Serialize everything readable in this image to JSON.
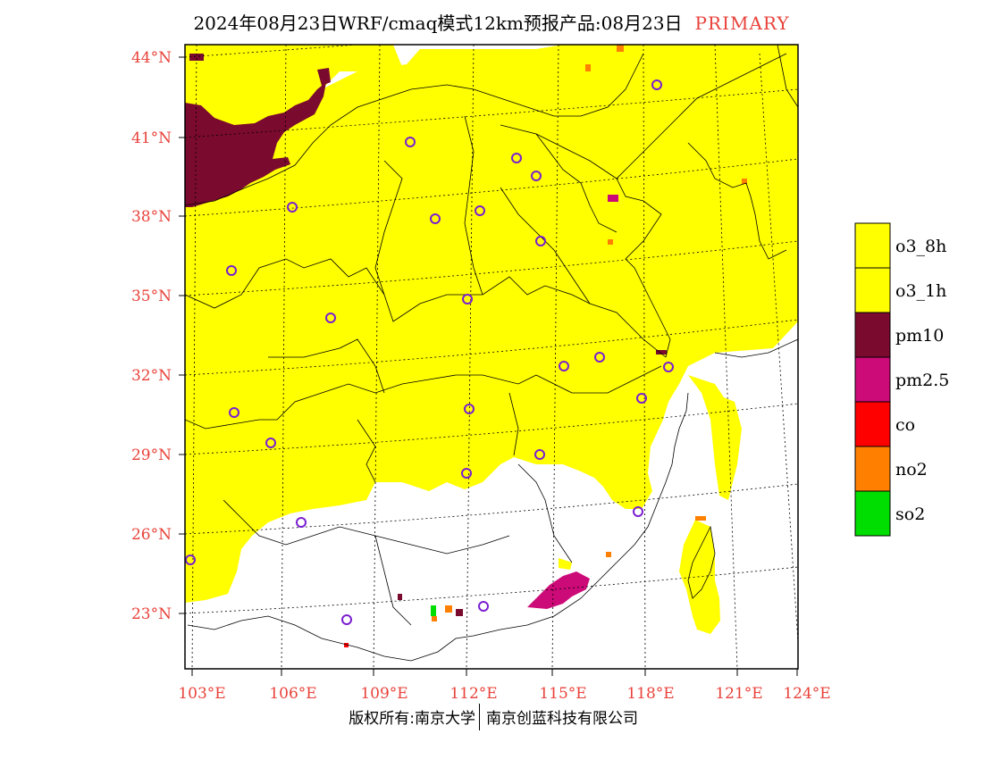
{
  "header": {
    "title": "2024年08月23日WRF/cmaq模式12km预报产品:08月23日",
    "tag": "PRIMARY"
  },
  "map": {
    "lat_labels": [
      "44°N",
      "41°N",
      "38°N",
      "35°N",
      "32°N",
      "29°N",
      "26°N",
      "23°N"
    ],
    "lon_labels": [
      "103°E",
      "106°E",
      "109°E",
      "112°E",
      "115°E",
      "118°E",
      "121°E",
      "124°E"
    ],
    "colors": {
      "o3_8h": "#ffff00",
      "o3_1h": "#ffff00",
      "pm10": "#7a0a2e",
      "pm25": "#cc0a78",
      "co": "#ff0000",
      "no2": "#ff8000",
      "so2": "#00dd00",
      "station": "#7a1fd0",
      "label": "#e8423a"
    }
  },
  "legend": {
    "items": [
      {
        "label": "o3_8h",
        "color": "#ffff00"
      },
      {
        "label": "o3_1h",
        "color": "#ffff00"
      },
      {
        "label": "pm10",
        "color": "#7a0a2e"
      },
      {
        "label": "pm2.5",
        "color": "#cc0a78"
      },
      {
        "label": "co",
        "color": "#ff0000"
      },
      {
        "label": "no2",
        "color": "#ff8000"
      },
      {
        "label": "so2",
        "color": "#00dd00"
      }
    ]
  },
  "footer": {
    "left": "版权所有:南京大学",
    "right": "南京创蓝科技有限公司"
  }
}
